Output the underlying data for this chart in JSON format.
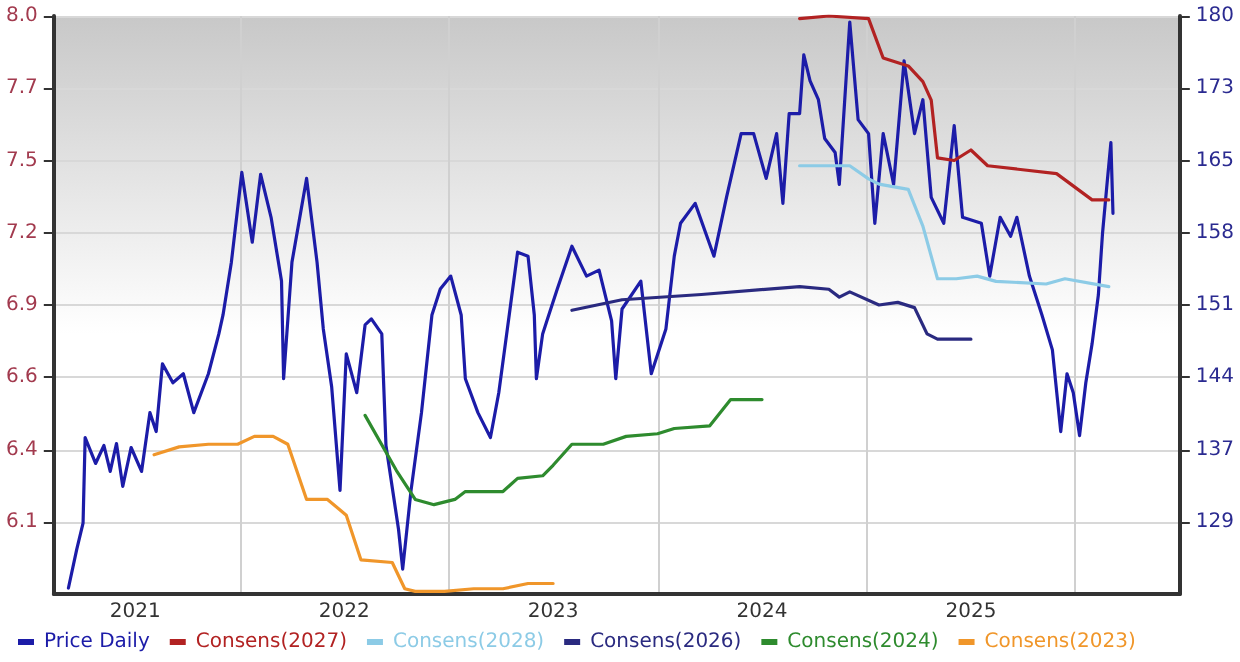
{
  "chart_data": {
    "type": "line",
    "xlim": [
      2020.61,
      2026.0
    ],
    "xticks": [
      2021,
      {
        "value": 2021.5,
        "label": null
      },
      2022,
      {
        "value": 2022.5,
        "label": null
      },
      2023,
      {
        "value": 2023.5,
        "label": null
      },
      2024,
      {
        "value": 2024.5,
        "label": null
      },
      2025,
      {
        "value": 2025.5,
        "label": null
      }
    ],
    "ylim": [
      5.8,
      8.0
    ],
    "yticks": [
      {
        "value": 6.075,
        "label": "6.1"
      },
      {
        "value": 6.35,
        "label": "6.4"
      },
      {
        "value": 6.625,
        "label": "6.6"
      },
      {
        "value": 6.9,
        "label": "6.9"
      },
      {
        "value": 7.175,
        "label": "7.2"
      },
      {
        "value": 7.45,
        "label": "7.5"
      },
      {
        "value": 7.725,
        "label": "7.7"
      },
      {
        "value": 8.0,
        "label": "8.0"
      }
    ],
    "y2lim": [
      122,
      180
    ],
    "y2ticks": [
      {
        "value": 129.25,
        "label": "129"
      },
      {
        "value": 136.5,
        "label": "137"
      },
      {
        "value": 143.75,
        "label": "144"
      },
      {
        "value": 151,
        "label": "151"
      },
      {
        "value": 158.25,
        "label": "158"
      },
      {
        "value": 165.5,
        "label": "165"
      },
      {
        "value": 172.75,
        "label": "173"
      },
      {
        "value": 180,
        "label": "180"
      }
    ],
    "grid": true,
    "legend": "bottom left",
    "marker": "none",
    "line_style": "solid",
    "series": [
      {
        "name": "Price Daily",
        "color": "#1c1ca8",
        "axis": "y2",
        "x": [
          2020.68,
          2020.72,
          2020.75,
          2020.76,
          2020.81,
          2020.85,
          2020.88,
          2020.91,
          2020.94,
          2020.98,
          2021.03,
          2021.07,
          2021.1,
          2021.13,
          2021.18,
          2021.23,
          2021.28,
          2021.35,
          2021.4,
          2021.42,
          2021.46,
          2021.51,
          2021.56,
          2021.6,
          2021.65,
          2021.7,
          2021.71,
          2021.75,
          2021.82,
          2021.87,
          2021.9,
          2021.94,
          2021.98,
          2022.01,
          2022.06,
          2022.1,
          2022.13,
          2022.18,
          2022.2,
          2022.26,
          2022.28,
          2022.32,
          2022.37,
          2022.42,
          2022.46,
          2022.51,
          2022.56,
          2022.58,
          2022.64,
          2022.7,
          2022.74,
          2022.79,
          2022.83,
          2022.88,
          2022.91,
          2022.92,
          2022.95,
          2022.97,
          2023.02,
          2023.09,
          2023.16,
          2023.22,
          2023.28,
          2023.3,
          2023.33,
          2023.42,
          2023.47,
          2023.54,
          2023.58,
          2023.61,
          2023.68,
          2023.77,
          2023.83,
          2023.9,
          2023.96,
          2024.02,
          2024.07,
          2024.1,
          2024.13,
          2024.18,
          2024.2,
          2024.23,
          2024.27,
          2024.3,
          2024.35,
          2024.37,
          2024.42,
          2024.46,
          2024.51,
          2024.54,
          2024.58,
          2024.63,
          2024.68,
          2024.73,
          2024.77,
          2024.81,
          2024.87,
          2024.92,
          2024.96,
          2025.05,
          2025.09,
          2025.14,
          2025.19,
          2025.22,
          2025.28,
          2025.34,
          2025.39,
          2025.43,
          2025.46,
          2025.49,
          2025.52,
          2025.55,
          2025.58,
          2025.61,
          2025.63,
          2025.65,
          2025.67,
          2025.68
        ],
        "values": [
          122.6,
          126.5,
          129.1,
          137.7,
          135.1,
          136.9,
          134.3,
          137.1,
          132.8,
          136.7,
          134.3,
          140.2,
          138.3,
          145.1,
          143.2,
          144.1,
          140.2,
          144.1,
          148.1,
          150.0,
          155.3,
          164.3,
          157.3,
          164.1,
          159.8,
          153.4,
          143.6,
          155.3,
          163.7,
          155.3,
          148.6,
          142.8,
          132.4,
          146.1,
          142.2,
          149.0,
          149.6,
          148.1,
          136.9,
          128.5,
          124.5,
          132.4,
          140.2,
          150.0,
          152.6,
          153.9,
          150.0,
          143.6,
          140.2,
          137.7,
          142.2,
          150.0,
          156.3,
          155.9,
          150.0,
          143.6,
          148.1,
          149.4,
          152.6,
          156.9,
          153.9,
          154.5,
          149.4,
          143.6,
          150.6,
          153.4,
          144.1,
          148.6,
          155.9,
          159.2,
          161.2,
          155.9,
          161.8,
          168.2,
          168.2,
          163.7,
          168.2,
          161.2,
          170.2,
          170.2,
          176.1,
          173.5,
          171.6,
          167.7,
          166.3,
          163.1,
          179.4,
          169.6,
          168.2,
          159.2,
          168.2,
          163.1,
          175.5,
          168.2,
          171.6,
          161.8,
          159.2,
          169.0,
          159.8,
          159.2,
          153.9,
          159.8,
          157.9,
          159.8,
          153.9,
          150.0,
          146.5,
          138.3,
          144.1,
          142.2,
          137.9,
          143.2,
          147.1,
          152.0,
          158.2,
          162.8,
          167.3,
          160.2
        ]
      },
      {
        "name": "Consens(2027)",
        "color": "#b22222",
        "x": [
          2024.18,
          2024.32,
          2024.51,
          2024.58,
          2024.7,
          2024.77,
          2024.81,
          2024.84,
          2024.92,
          2025.0,
          2025.08,
          2025.41,
          2025.58,
          2025.66
        ],
        "values": [
          7.99,
          8.0,
          7.99,
          7.84,
          7.81,
          7.75,
          7.68,
          7.46,
          7.45,
          7.49,
          7.43,
          7.4,
          7.3,
          7.3
        ]
      },
      {
        "name": "Consens(2028)",
        "color": "#8ccbe6",
        "x": [
          2024.18,
          2024.42,
          2024.51,
          2024.56,
          2024.7,
          2024.77,
          2024.84,
          2024.93,
          2025.03,
          2025.12,
          2025.36,
          2025.45,
          2025.66
        ],
        "values": [
          7.43,
          7.43,
          7.38,
          7.36,
          7.34,
          7.2,
          7.0,
          7.0,
          7.01,
          6.99,
          6.98,
          7.0,
          6.97
        ]
      },
      {
        "name": "Consens(2026)",
        "color": "#2a2a80",
        "x": [
          2023.09,
          2023.33,
          2023.71,
          2024.18,
          2024.32,
          2024.37,
          2024.42,
          2024.56,
          2024.65,
          2024.73,
          2024.79,
          2024.84,
          2025.0
        ],
        "values": [
          6.88,
          6.92,
          6.94,
          6.97,
          6.96,
          6.93,
          6.95,
          6.9,
          6.91,
          6.89,
          6.79,
          6.77,
          6.77
        ]
      },
      {
        "name": "Consens(2024)",
        "color": "#2e8b2e",
        "x": [
          2022.1,
          2022.25,
          2022.34,
          2022.43,
          2022.53,
          2022.58,
          2022.76,
          2022.83,
          2022.95,
          2023.0,
          2023.09,
          2023.24,
          2023.35,
          2023.5,
          2023.58,
          2023.75,
          2023.85,
          2024.0
        ],
        "values": [
          6.48,
          6.27,
          6.16,
          6.14,
          6.16,
          6.19,
          6.19,
          6.24,
          6.25,
          6.29,
          6.37,
          6.37,
          6.4,
          6.41,
          6.43,
          6.44,
          6.54,
          6.54
        ]
      },
      {
        "name": "Consens(2023)",
        "color": "#f0962a",
        "x": [
          2021.09,
          2021.21,
          2021.35,
          2021.49,
          2021.57,
          2021.66,
          2021.73,
          2021.82,
          2021.92,
          2022.01,
          2022.08,
          2022.23,
          2022.29,
          2022.34,
          2022.48,
          2022.62,
          2022.76,
          2022.88,
          2023.0
        ],
        "values": [
          6.33,
          6.36,
          6.37,
          6.37,
          6.4,
          6.4,
          6.37,
          6.16,
          6.16,
          6.1,
          5.93,
          5.92,
          5.82,
          5.81,
          5.81,
          5.82,
          5.82,
          5.84,
          5.84
        ]
      }
    ]
  }
}
